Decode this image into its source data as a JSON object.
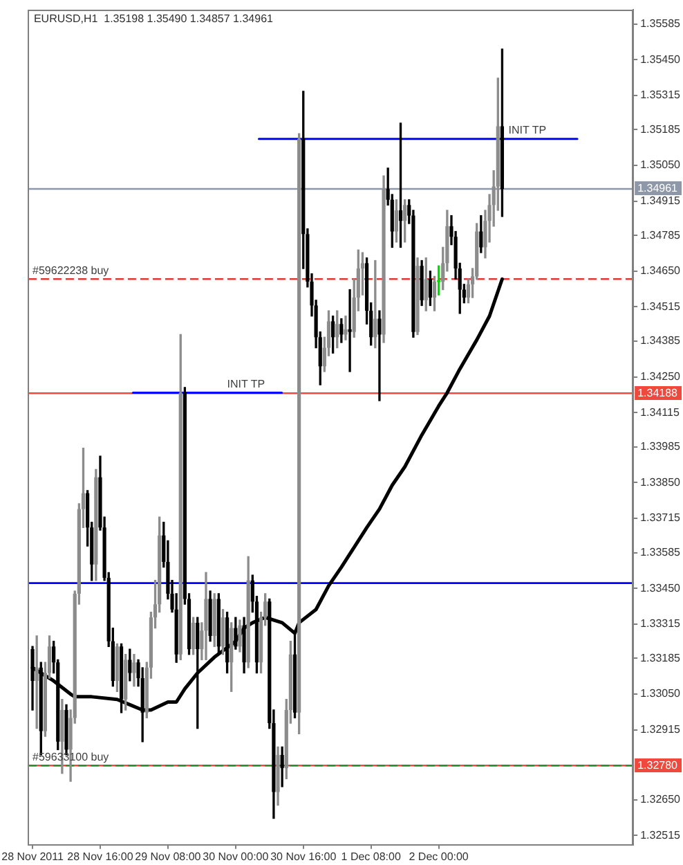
{
  "chart_data": {
    "type": "candlestick",
    "title": "EURUSD,H1  1.35198 1.35490 1.34857 1.34961",
    "x": [
      "2011-11-28T00:00",
      "2011-11-28T01:00",
      "2011-11-28T02:00",
      "2011-11-28T03:00",
      "2011-11-28T04:00",
      "2011-11-28T05:00",
      "2011-11-28T06:00",
      "2011-11-28T07:00",
      "2011-11-28T08:00",
      "2011-11-28T09:00",
      "2011-11-28T10:00",
      "2011-11-28T11:00",
      "2011-11-28T12:00",
      "2011-11-28T13:00",
      "2011-11-28T14:00",
      "2011-11-28T15:00",
      "2011-11-28T16:00",
      "2011-11-28T17:00",
      "2011-11-28T18:00",
      "2011-11-28T19:00",
      "2011-11-28T20:00",
      "2011-11-28T21:00",
      "2011-11-28T22:00",
      "2011-11-28T23:00",
      "2011-11-29T00:00",
      "2011-11-29T01:00",
      "2011-11-29T02:00",
      "2011-11-29T03:00",
      "2011-11-29T04:00",
      "2011-11-29T05:00",
      "2011-11-29T06:00",
      "2011-11-29T07:00",
      "2011-11-29T08:00",
      "2011-11-29T09:00",
      "2011-11-29T10:00",
      "2011-11-29T11:00",
      "2011-11-29T12:00",
      "2011-11-29T13:00",
      "2011-11-29T14:00",
      "2011-11-29T15:00",
      "2011-11-29T16:00",
      "2011-11-29T17:00",
      "2011-11-29T18:00",
      "2011-11-29T19:00",
      "2011-11-29T20:00",
      "2011-11-29T21:00",
      "2011-11-29T22:00",
      "2011-11-29T23:00",
      "2011-11-30T00:00",
      "2011-11-30T01:00",
      "2011-11-30T02:00",
      "2011-11-30T03:00",
      "2011-11-30T04:00",
      "2011-11-30T05:00",
      "2011-11-30T06:00",
      "2011-11-30T07:00",
      "2011-11-30T08:00",
      "2011-11-30T09:00",
      "2011-11-30T10:00",
      "2011-11-30T11:00",
      "2011-11-30T12:00",
      "2011-11-30T13:00",
      "2011-11-30T14:00",
      "2011-11-30T15:00",
      "2011-11-30T16:00",
      "2011-11-30T17:00",
      "2011-11-30T18:00",
      "2011-11-30T19:00",
      "2011-11-30T20:00",
      "2011-11-30T21:00",
      "2011-11-30T22:00",
      "2011-11-30T23:00",
      "2011-12-01T00:00",
      "2011-12-01T01:00",
      "2011-12-01T02:00",
      "2011-12-01T03:00",
      "2011-12-01T04:00",
      "2011-12-01T05:00",
      "2011-12-01T06:00",
      "2011-12-01T07:00",
      "2011-12-01T08:00",
      "2011-12-01T09:00",
      "2011-12-01T10:00",
      "2011-12-01T11:00",
      "2011-12-01T12:00",
      "2011-12-01T13:00",
      "2011-12-01T14:00",
      "2011-12-01T15:00",
      "2011-12-01T16:00",
      "2011-12-01T17:00",
      "2011-12-01T18:00",
      "2011-12-01T19:00",
      "2011-12-01T20:00",
      "2011-12-01T21:00",
      "2011-12-01T22:00",
      "2011-12-01T23:00",
      "2011-12-02T00:00",
      "2011-12-02T01:00",
      "2011-12-02T02:00",
      "2011-12-02T03:00",
      "2011-12-02T04:00",
      "2011-12-02T05:00",
      "2011-12-02T06:00",
      "2011-12-02T07:00",
      "2011-12-02T08:00",
      "2011-12-02T09:00",
      "2011-12-02T10:00",
      "2011-12-02T11:00",
      "2011-12-02T12:00",
      "2011-12-02T13:00",
      "2011-12-02T14:00",
      "2011-12-02T15:00"
    ],
    "xlim": [
      "2011-11-27T23:00",
      "2011-12-03T22:00"
    ],
    "xticks": [
      {
        "value": "2011-11-28T00:00",
        "label": "28 Nov 2011"
      },
      {
        "value": "2011-11-28T16:00",
        "label": "28 Nov 16:00"
      },
      {
        "value": "2011-11-29T08:00",
        "label": "29 Nov 08:00"
      },
      {
        "value": "2011-11-30T00:00",
        "label": "30 Nov 00:00"
      },
      {
        "value": "2011-11-30T16:00",
        "label": "30 Nov 16:00"
      },
      {
        "value": "2011-12-01T08:00",
        "label": "1 Dec 08:00"
      },
      {
        "value": "2011-12-02T00:00",
        "label": "2 Dec 00:00"
      }
    ],
    "ylim": [
      1.3248,
      1.3564
    ],
    "yticks": [
      {
        "value": 1.35585,
        "label": "1.35585"
      },
      {
        "value": 1.3545,
        "label": "1.35450"
      },
      {
        "value": 1.35315,
        "label": "1.35315"
      },
      {
        "value": 1.35185,
        "label": "1.35185"
      },
      {
        "value": 1.3505,
        "label": "1.35050"
      },
      {
        "value": 1.34915,
        "label": "1.34915"
      },
      {
        "value": 1.34785,
        "label": "1.34785"
      },
      {
        "value": 1.3465,
        "label": "1.34650"
      },
      {
        "value": 1.34515,
        "label": "1.34515"
      },
      {
        "value": 1.34385,
        "label": "1.34385"
      },
      {
        "value": 1.3425,
        "label": "1.34250"
      },
      {
        "value": 1.34115,
        "label": "1.34115"
      },
      {
        "value": 1.33985,
        "label": "1.33985"
      },
      {
        "value": 1.3385,
        "label": "1.33850"
      },
      {
        "value": 1.33715,
        "label": "1.33715"
      },
      {
        "value": 1.33585,
        "label": "1.33585"
      },
      {
        "value": 1.3345,
        "label": "1.33450"
      },
      {
        "value": 1.33315,
        "label": "1.33315"
      },
      {
        "value": 1.33185,
        "label": "1.33185"
      },
      {
        "value": 1.3305,
        "label": "1.33050"
      },
      {
        "value": 1.32915,
        "label": "1.32915"
      },
      {
        "value": 1.3265,
        "label": "1.32650"
      },
      {
        "value": 1.32515,
        "label": "1.32515"
      }
    ],
    "series": [
      {
        "ohlc": [
          [
            1.3322,
            1.3323,
            1.3299,
            1.331
          ],
          [
            1.331,
            1.3327,
            1.3292,
            1.3315
          ],
          [
            1.3315,
            1.3317,
            1.3282,
            1.3291
          ],
          [
            1.3291,
            1.3317,
            1.3289,
            1.3313
          ],
          [
            1.3313,
            1.3327,
            1.3311,
            1.3323
          ],
          [
            1.3323,
            1.3325,
            1.3313,
            1.3317
          ],
          [
            1.3317,
            1.3318,
            1.3284,
            1.3287
          ],
          [
            1.3287,
            1.3303,
            1.3275,
            1.3299
          ],
          [
            1.3299,
            1.3301,
            1.3282,
            1.3284
          ],
          [
            1.3284,
            1.3299,
            1.3272,
            1.3296
          ],
          [
            1.3296,
            1.3344,
            1.3294,
            1.3343
          ],
          [
            1.3343,
            1.3377,
            1.3339,
            1.3375
          ],
          [
            1.3375,
            1.3398,
            1.3368,
            1.3381
          ],
          [
            1.3381,
            1.3382,
            1.3361,
            1.3368
          ],
          [
            1.3368,
            1.337,
            1.3348,
            1.3354
          ],
          [
            1.3354,
            1.339,
            1.3348,
            1.3387
          ],
          [
            1.3387,
            1.3395,
            1.3367,
            1.3368
          ],
          [
            1.3368,
            1.3372,
            1.3348,
            1.3349
          ],
          [
            1.3349,
            1.3351,
            1.3323,
            1.3325
          ],
          [
            1.3325,
            1.333,
            1.3308,
            1.331
          ],
          [
            1.331,
            1.3324,
            1.3306,
            1.3323
          ],
          [
            1.3323,
            1.3324,
            1.3298,
            1.3303
          ],
          [
            1.3303,
            1.332,
            1.3299,
            1.3318
          ],
          [
            1.3318,
            1.3322,
            1.331,
            1.3313
          ],
          [
            1.3313,
            1.332,
            1.3308,
            1.3317
          ],
          [
            1.3317,
            1.3318,
            1.3308,
            1.3311
          ],
          [
            1.3311,
            1.3315,
            1.3287,
            1.3298
          ],
          [
            1.3298,
            1.3317,
            1.3296,
            1.3315
          ],
          [
            1.3315,
            1.3336,
            1.3311,
            1.3334
          ],
          [
            1.3334,
            1.3348,
            1.333,
            1.3339
          ],
          [
            1.3339,
            1.3372,
            1.3336,
            1.3365
          ],
          [
            1.3365,
            1.337,
            1.3353,
            1.3355
          ],
          [
            1.3355,
            1.3363,
            1.3341,
            1.3343
          ],
          [
            1.3343,
            1.3348,
            1.3336,
            1.3337
          ],
          [
            1.3337,
            1.3343,
            1.3317,
            1.332
          ],
          [
            1.332,
            1.3441,
            1.3318,
            1.3419
          ],
          [
            1.3419,
            1.3421,
            1.3339,
            1.3341
          ],
          [
            1.3341,
            1.3343,
            1.332,
            1.3322
          ],
          [
            1.3322,
            1.3334,
            1.332,
            1.3332
          ],
          [
            1.3332,
            1.3334,
            1.3292,
            1.3322
          ],
          [
            1.3322,
            1.3332,
            1.3318,
            1.3329
          ],
          [
            1.3329,
            1.3351,
            1.3318,
            1.3341
          ],
          [
            1.3341,
            1.3344,
            1.3325,
            1.3327
          ],
          [
            1.3327,
            1.3343,
            1.3323,
            1.3341
          ],
          [
            1.3341,
            1.3343,
            1.332,
            1.3323
          ],
          [
            1.3323,
            1.3337,
            1.332,
            1.3334
          ],
          [
            1.3334,
            1.3336,
            1.3313,
            1.3317
          ],
          [
            1.3317,
            1.3332,
            1.3306,
            1.333
          ],
          [
            1.333,
            1.3334,
            1.3322,
            1.3323
          ],
          [
            1.3323,
            1.3333,
            1.3321,
            1.3331
          ],
          [
            1.3331,
            1.3334,
            1.3313,
            1.3317
          ],
          [
            1.3317,
            1.3357,
            1.3315,
            1.3348
          ],
          [
            1.3348,
            1.335,
            1.3336,
            1.334
          ],
          [
            1.334,
            1.3342,
            1.3313,
            1.3317
          ],
          [
            1.3317,
            1.3336,
            1.3313,
            1.3334
          ],
          [
            1.3334,
            1.3343,
            1.3331,
            1.334
          ],
          [
            1.334,
            1.3341,
            1.3292,
            1.3294
          ],
          [
            1.3294,
            1.3299,
            1.3258,
            1.3268
          ],
          [
            1.3268,
            1.3285,
            1.3263,
            1.3282
          ],
          [
            1.3282,
            1.3285,
            1.327,
            1.3277
          ],
          [
            1.3277,
            1.3303,
            1.3273,
            1.3299
          ],
          [
            1.3299,
            1.3325,
            1.3294,
            1.332
          ],
          [
            1.332,
            1.3329,
            1.3296,
            1.3298
          ],
          [
            1.3298,
            1.3517,
            1.329,
            1.3515
          ],
          [
            1.3515,
            1.3533,
            1.3466,
            1.3479
          ],
          [
            1.3479,
            1.3481,
            1.3459,
            1.3461
          ],
          [
            1.3461,
            1.3464,
            1.3448,
            1.3452
          ],
          [
            1.3452,
            1.3454,
            1.3436,
            1.344
          ],
          [
            1.344,
            1.3442,
            1.3422,
            1.3429
          ],
          [
            1.3429,
            1.344,
            1.3427,
            1.3436
          ],
          [
            1.3436,
            1.345,
            1.3433,
            1.3446
          ],
          [
            1.3446,
            1.3448,
            1.3434,
            1.344
          ],
          [
            1.344,
            1.345,
            1.3436,
            1.3445
          ],
          [
            1.3445,
            1.3447,
            1.3438,
            1.3441
          ],
          [
            1.3441,
            1.3448,
            1.3439,
            1.3443
          ],
          [
            1.3443,
            1.3458,
            1.3427,
            1.3442
          ],
          [
            1.3442,
            1.3462,
            1.344,
            1.3455
          ],
          [
            1.3455,
            1.3473,
            1.345,
            1.3466
          ],
          [
            1.3466,
            1.3472,
            1.3456,
            1.3468
          ],
          [
            1.3468,
            1.347,
            1.3445,
            1.345
          ],
          [
            1.345,
            1.3453,
            1.3437,
            1.344
          ],
          [
            1.344,
            1.3469,
            1.3436,
            1.3447
          ],
          [
            1.3447,
            1.345,
            1.3416,
            1.3441
          ],
          [
            1.3441,
            1.3501,
            1.3438,
            1.3496
          ],
          [
            1.3496,
            1.3504,
            1.349,
            1.3492
          ],
          [
            1.3492,
            1.3494,
            1.3474,
            1.348
          ],
          [
            1.348,
            1.3492,
            1.3476,
            1.3488
          ],
          [
            1.3488,
            1.3521,
            1.3474,
            1.3484
          ],
          [
            1.3484,
            1.3492,
            1.3476,
            1.349
          ],
          [
            1.349,
            1.3492,
            1.3483,
            1.3486
          ],
          [
            1.3486,
            1.3488,
            1.344,
            1.3442
          ],
          [
            1.3442,
            1.347,
            1.3441,
            1.3467
          ],
          [
            1.3467,
            1.3469,
            1.3452,
            1.3454
          ],
          [
            1.3454,
            1.347,
            1.345,
            1.3462
          ],
          [
            1.3462,
            1.3465,
            1.3452,
            1.3455
          ],
          [
            1.3455,
            1.3463,
            1.345,
            1.3461
          ],
          [
            1.3461,
            1.3467,
            1.3456,
            1.3461
          ],
          [
            1.3461,
            1.3474,
            1.3458,
            1.3468
          ],
          [
            1.3468,
            1.3488,
            1.3465,
            1.3482
          ],
          [
            1.3482,
            1.3486,
            1.3475,
            1.3478
          ],
          [
            1.3478,
            1.348,
            1.3462,
            1.3466
          ],
          [
            1.3466,
            1.3468,
            1.3449,
            1.3458
          ],
          [
            1.3458,
            1.346,
            1.3453,
            1.3455
          ],
          [
            1.3455,
            1.3462,
            1.3453,
            1.346
          ],
          [
            1.346,
            1.3466,
            1.3455,
            1.3463
          ],
          [
            1.3463,
            1.3483,
            1.3462,
            1.348
          ],
          [
            1.348,
            1.3486,
            1.3472,
            1.3474
          ],
          [
            1.3474,
            1.3488,
            1.347,
            1.3484
          ],
          [
            1.3484,
            1.3494,
            1.3476,
            1.349
          ],
          [
            1.349,
            1.3503,
            1.3482,
            1.3497
          ],
          [
            1.3497,
            1.3538,
            1.3488,
            1.35198
          ],
          [
            1.35198,
            1.3549,
            1.34857,
            1.34961
          ]
        ],
        "colors": [
          "#000000",
          "#8c8c8c",
          "#000000",
          "#8c8c8c",
          "#8c8c8c",
          "#000000",
          "#000000",
          "#8c8c8c",
          "#000000",
          "#8c8c8c",
          "#8c8c8c",
          "#8c8c8c",
          "#8c8c8c",
          "#000000",
          "#000000",
          "#8c8c8c",
          "#000000",
          "#000000",
          "#000000",
          "#000000",
          "#8c8c8c",
          "#000000",
          "#8c8c8c",
          "#000000",
          "#8c8c8c",
          "#000000",
          "#000000",
          "#8c8c8c",
          "#8c8c8c",
          "#8c8c8c",
          "#8c8c8c",
          "#000000",
          "#000000",
          "#000000",
          "#000000",
          "#8c8c8c",
          "#000000",
          "#000000",
          "#8c8c8c",
          "#000000",
          "#8c8c8c",
          "#8c8c8c",
          "#000000",
          "#8c8c8c",
          "#000000",
          "#8c8c8c",
          "#000000",
          "#8c8c8c",
          "#000000",
          "#8c8c8c",
          "#000000",
          "#8c8c8c",
          "#000000",
          "#000000",
          "#8c8c8c",
          "#8c8c8c",
          "#000000",
          "#000000",
          "#8c8c8c",
          "#000000",
          "#8c8c8c",
          "#8c8c8c",
          "#000000",
          "#8c8c8c",
          "#000000",
          "#000000",
          "#000000",
          "#000000",
          "#000000",
          "#8c8c8c",
          "#8c8c8c",
          "#000000",
          "#8c8c8c",
          "#000000",
          "#8c8c8c",
          "#000000",
          "#8c8c8c",
          "#8c8c8c",
          "#8c8c8c",
          "#000000",
          "#000000",
          "#8c8c8c",
          "#000000",
          "#8c8c8c",
          "#000000",
          "#000000",
          "#8c8c8c",
          "#000000",
          "#8c8c8c",
          "#000000",
          "#000000",
          "#8c8c8c",
          "#000000",
          "#8c8c8c",
          "#000000",
          "#8c8c8c",
          "#00dd00",
          "#8c8c8c",
          "#8c8c8c",
          "#000000",
          "#000000",
          "#000000",
          "#000000",
          "#8c8c8c",
          "#8c8c8c",
          "#8c8c8c",
          "#000000",
          "#8c8c8c",
          "#8c8c8c",
          "#8c8c8c",
          "#8c8c8c",
          "#000000"
        ]
      },
      {
        "type": "line",
        "color": "#000000",
        "x": [
          "2011-11-28T00:00",
          "2011-11-28T03:00",
          "2011-11-28T05:00",
          "2011-11-28T09:00",
          "2011-11-28T10:00",
          "2011-11-28T14:00",
          "2011-11-28T20:00",
          "2011-11-28T23:00",
          "2011-11-29T02:00",
          "2011-11-29T04:00",
          "2011-11-29T08:00",
          "2011-11-29T10:00",
          "2011-11-29T12:00",
          "2011-11-29T15:00",
          "2011-11-29T19:00",
          "2011-11-30T00:00",
          "2011-11-30T02:00",
          "2011-11-30T04:00",
          "2011-11-30T07:00",
          "2011-11-30T11:00",
          "2011-11-30T14:00",
          "2011-11-30T15:00",
          "2011-11-30T19:00",
          "2011-11-30T22:00",
          "2011-12-01T01:00",
          "2011-12-01T07:00",
          "2011-12-01T10:00",
          "2011-12-01T13:00",
          "2011-12-01T16:00",
          "2011-12-01T20:00",
          "2011-12-02T00:00",
          "2011-12-02T02:00",
          "2011-12-02T05:00",
          "2011-12-02T09:00",
          "2011-12-02T12:00",
          "2011-12-02T15:00"
        ],
        "values": [
          1.3315,
          1.3312,
          1.331,
          1.3305,
          1.3304,
          1.3304,
          1.3303,
          1.3301,
          1.3299,
          1.3299,
          1.3302,
          1.3302,
          1.3307,
          1.3313,
          1.3319,
          1.3325,
          1.333,
          1.3332,
          1.3334,
          1.3332,
          1.3328,
          1.3332,
          1.3337,
          1.3346,
          1.3353,
          1.3368,
          1.3375,
          1.3384,
          1.3391,
          1.3403,
          1.3414,
          1.3419,
          1.3428,
          1.3439,
          1.3448,
          1.3462
        ]
      },
      {
        "type": "line",
        "color": "#0000ff",
        "x": [
          "2011-11-30T05:30",
          "2011-12-03T08:45"
        ],
        "values": [
          1.3515,
          1.3515
        ]
      },
      {
        "type": "line",
        "color": "#0000ff",
        "x": [
          "2011-11-28T23:45",
          "2011-11-30T10:55"
        ],
        "values": [
          1.3419,
          1.3419
        ]
      }
    ],
    "ref_lines": [
      {
        "axis": "y",
        "value": 1.34961,
        "label": "1.34961",
        "color": "#8f98a8"
      },
      {
        "axis": "y",
        "value": 1.3462,
        "color": "#e03a2e",
        "line_style": "dashed"
      },
      {
        "axis": "y",
        "value": 1.34188,
        "label": "1.34188",
        "color": "#f0483c"
      },
      {
        "axis": "y",
        "value": 1.3347,
        "color": "#0000ff"
      },
      {
        "axis": "y",
        "value": 1.3278,
        "label": "1.32780",
        "color": "#f0483c"
      },
      {
        "axis": "y",
        "value": 1.3278,
        "color": "#2e8b2e",
        "line_style": "dashed"
      }
    ],
    "annotations": [
      {
        "text": "#59622238 buy",
        "x": "2011-11-28T00:00",
        "y": 1.3462
      },
      {
        "text": "#59633100 buy",
        "x": "2011-11-28T00:00",
        "y": 1.3278
      },
      {
        "text": "INIT TP",
        "x": "2011-11-29T22:00",
        "y": 1.3419
      },
      {
        "text": "INIT TP",
        "x": "2011-12-02T16:30",
        "y": 1.3515
      }
    ]
  }
}
